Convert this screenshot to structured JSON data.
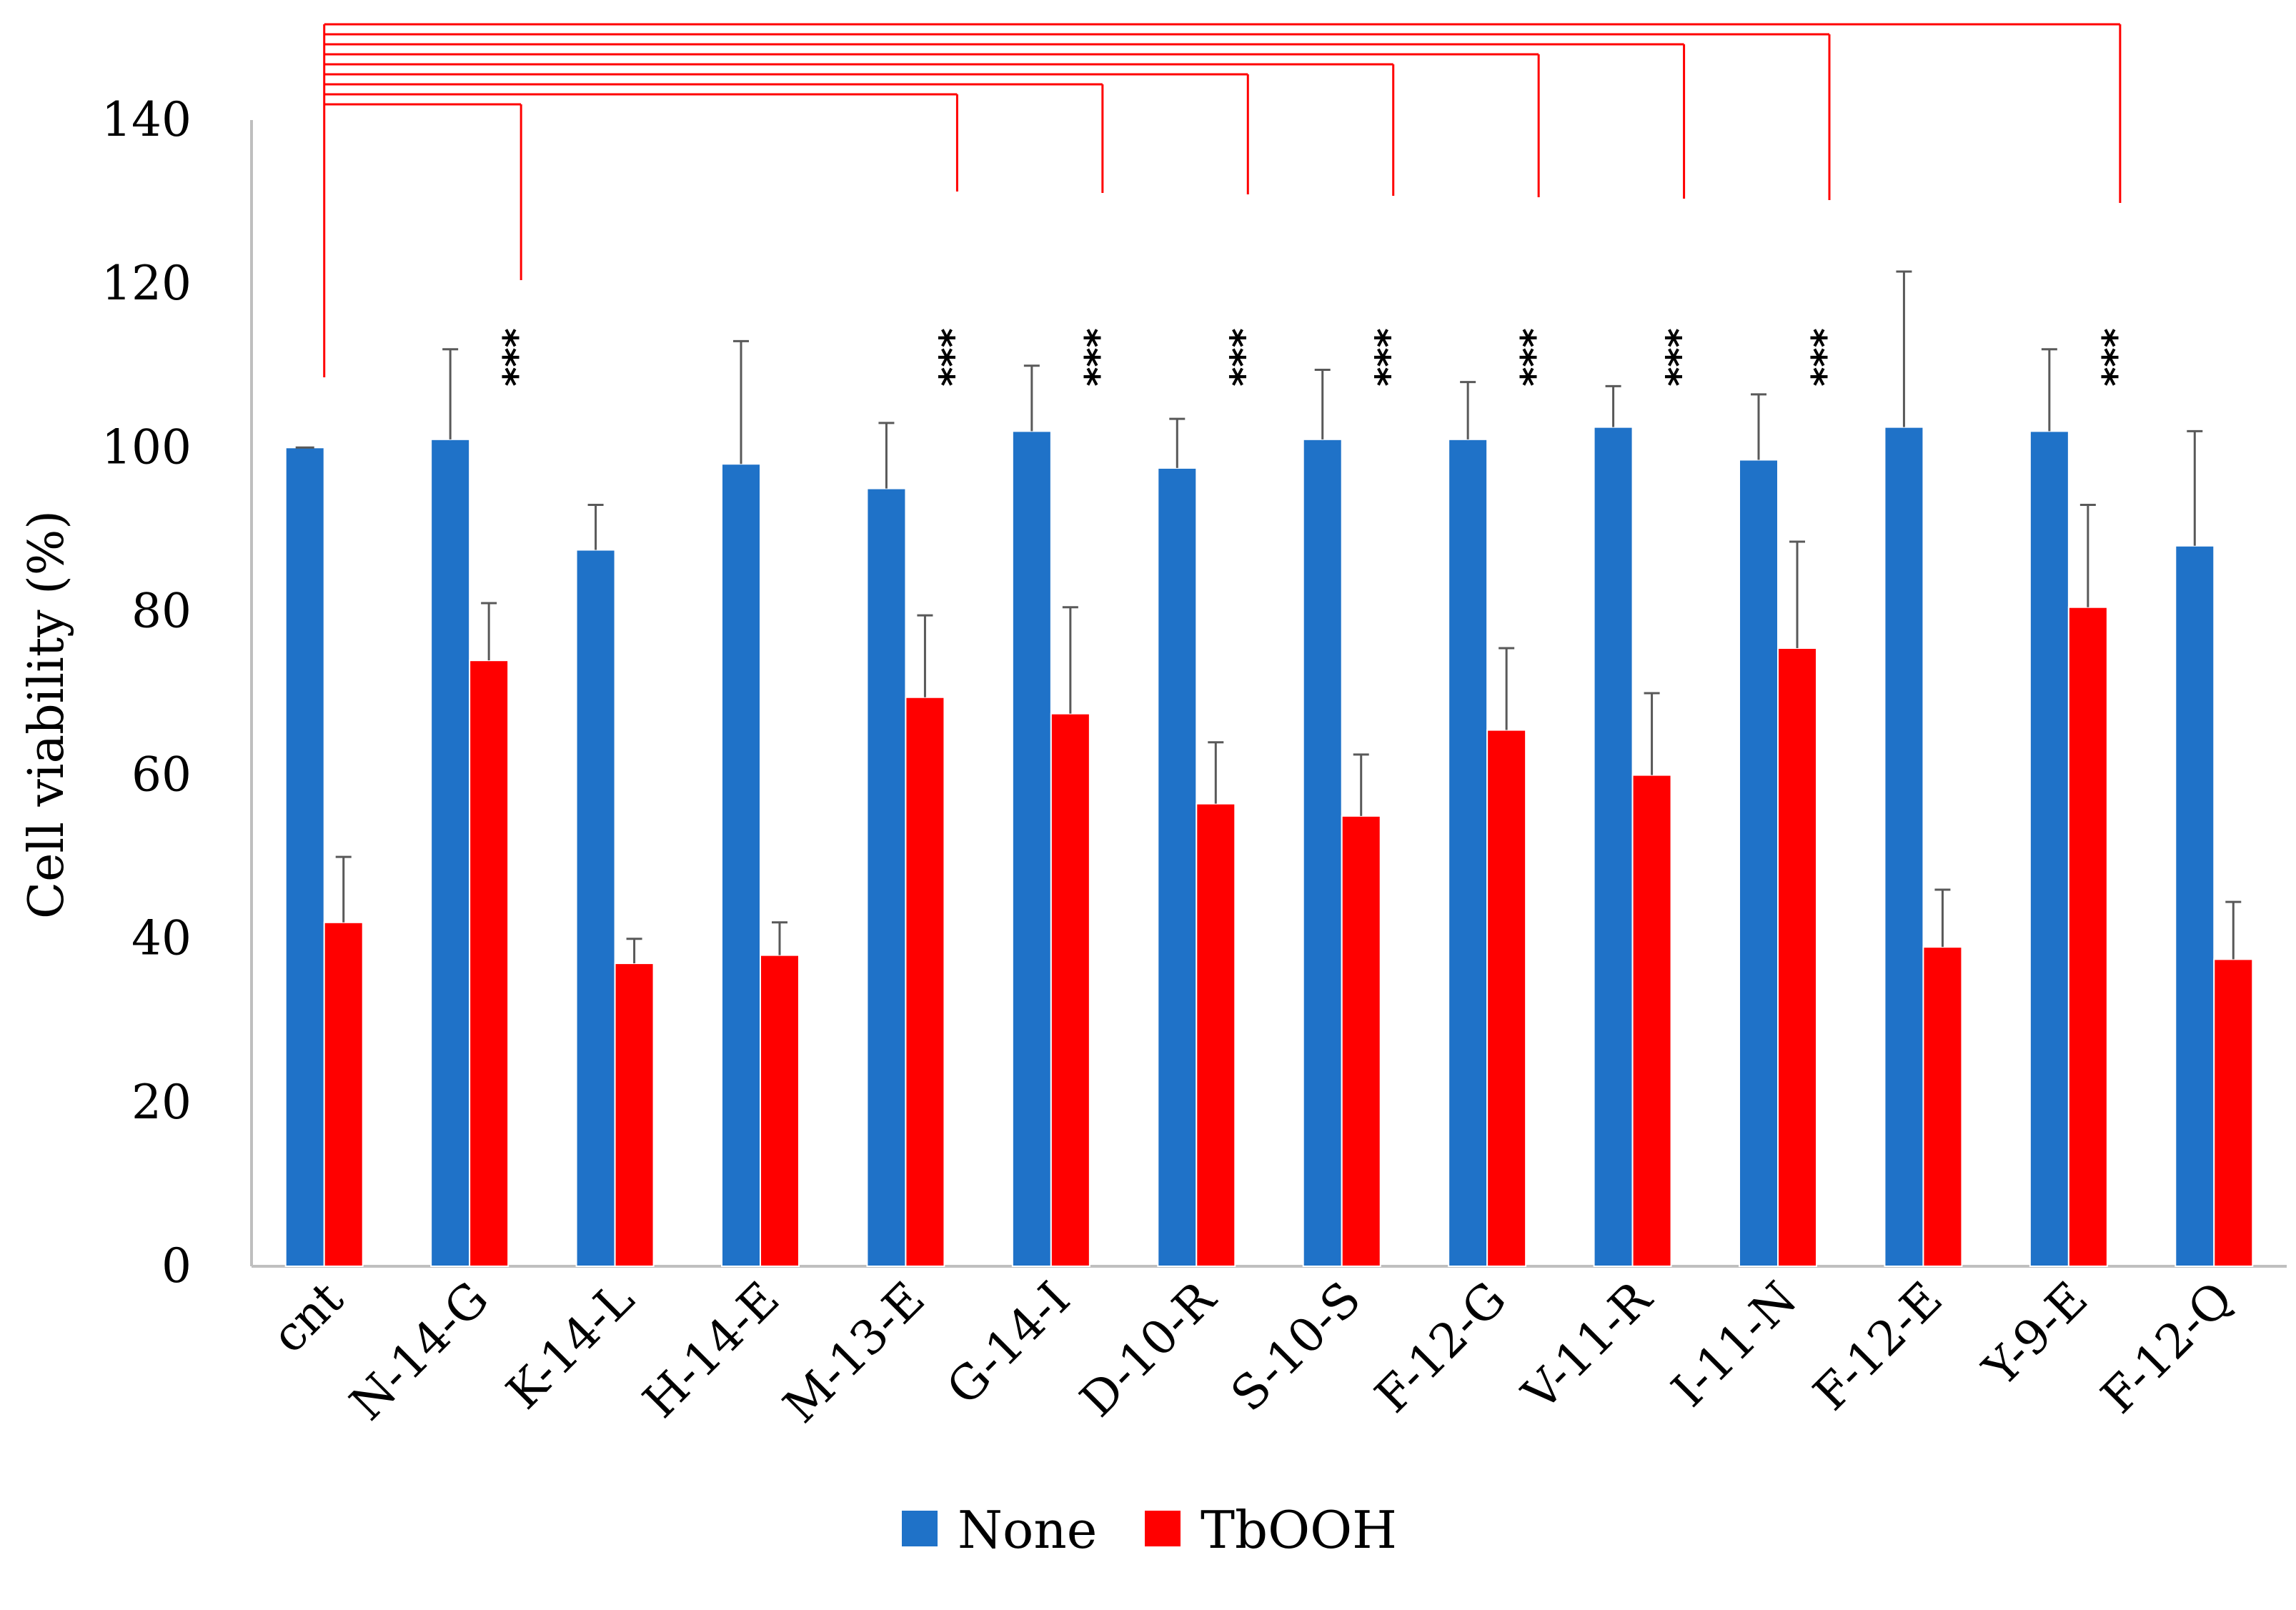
{
  "chart_data": {
    "type": "bar",
    "title": "",
    "xlabel": "",
    "ylabel": "Cell viability  (%)",
    "ylim": [
      0,
      140
    ],
    "yticks": [
      0,
      20,
      40,
      60,
      80,
      100,
      120,
      140
    ],
    "grid": false,
    "legend_position": "bottom",
    "categories": [
      "cnt",
      "N-14-G",
      "K-14-L",
      "H-14-E",
      "M-13-E",
      "G-14-I",
      "D-10-R",
      "S-10-S",
      "F-12-G",
      "V-11-R",
      "I-11-N",
      "F-12-E",
      "Y-9-E",
      "F-12-Q"
    ],
    "series": [
      {
        "name": "None",
        "color": "#1f72c8",
        "values": [
          100,
          101,
          87.5,
          98,
          95,
          102,
          97.5,
          101,
          101,
          102.5,
          98.5,
          102.5,
          102,
          88
        ],
        "errors": [
          0,
          11,
          5.5,
          15,
          8,
          8,
          6,
          8.5,
          7,
          5,
          8,
          19,
          10,
          14
        ]
      },
      {
        "name": "TbOOH",
        "color": "#ff0000",
        "values": [
          42,
          74,
          37,
          38,
          69.5,
          67.5,
          56.5,
          55,
          65.5,
          60,
          75.5,
          39,
          80.5,
          37.5
        ],
        "errors": [
          8,
          7,
          3,
          4,
          10,
          13,
          7.5,
          7.5,
          10,
          10,
          13,
          7,
          12.5,
          7
        ]
      }
    ],
    "significance": {
      "label": "***",
      "reference": "cnt",
      "compared": [
        "N-14-G",
        "M-13-E",
        "G-14-I",
        "D-10-R",
        "S-10-S",
        "F-12-G",
        "V-11-R",
        "I-11-N",
        "Y-9-E"
      ]
    }
  }
}
